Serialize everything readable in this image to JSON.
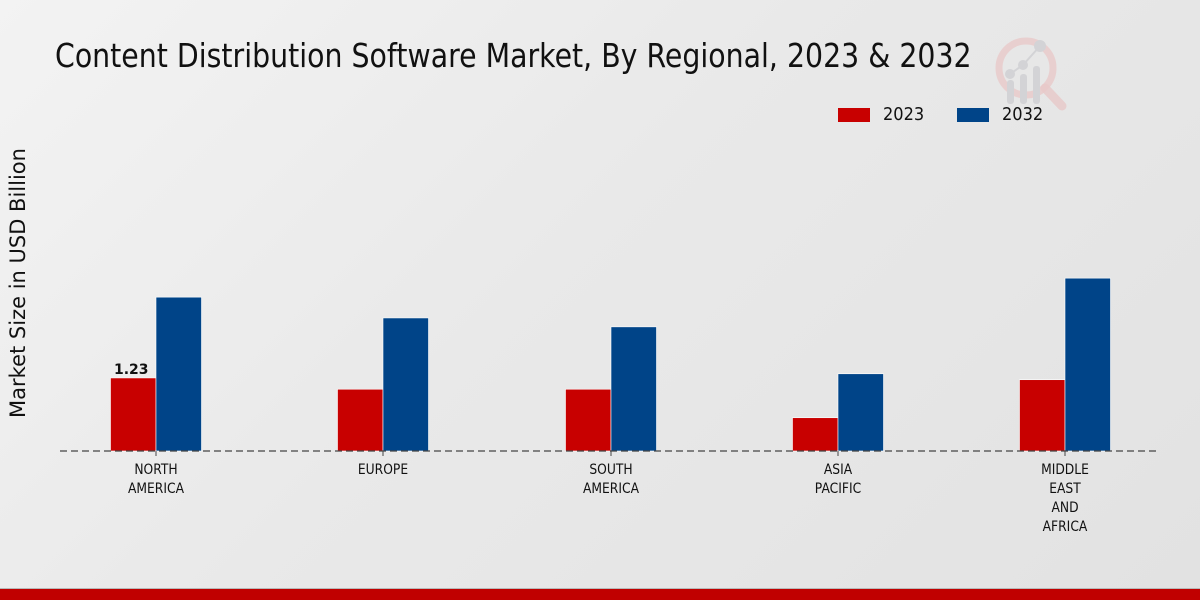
{
  "chart_data": {
    "type": "bar",
    "title": "Content Distribution Software Market, By Regional, 2023 & 2032",
    "xlabel": "",
    "ylabel": "Market Size in USD Billion",
    "categories": [
      [
        "NORTH",
        "AMERICA"
      ],
      [
        "EUROPE"
      ],
      [
        "SOUTH",
        "AMERICA"
      ],
      [
        "ASIA",
        "PACIFIC"
      ],
      [
        "MIDDLE",
        "EAST",
        "AND",
        "AFRICA"
      ]
    ],
    "series": [
      {
        "name": "2023",
        "color": "#c80000",
        "values": [
          1.23,
          1.04,
          1.04,
          0.56,
          1.2
        ]
      },
      {
        "name": "2032",
        "color": "#004488",
        "values": [
          2.59,
          2.24,
          2.09,
          1.3,
          2.91
        ]
      }
    ],
    "data_labels": [
      {
        "series": 0,
        "index": 0,
        "text": "1.23"
      }
    ],
    "ylim": [
      0,
      3.2
    ],
    "grid": false,
    "legend_position": "top-right"
  },
  "legend": [
    {
      "label": "2023",
      "color": "#c80000"
    },
    {
      "label": "2032",
      "color": "#004488"
    }
  ],
  "footer_color": "#c00000"
}
